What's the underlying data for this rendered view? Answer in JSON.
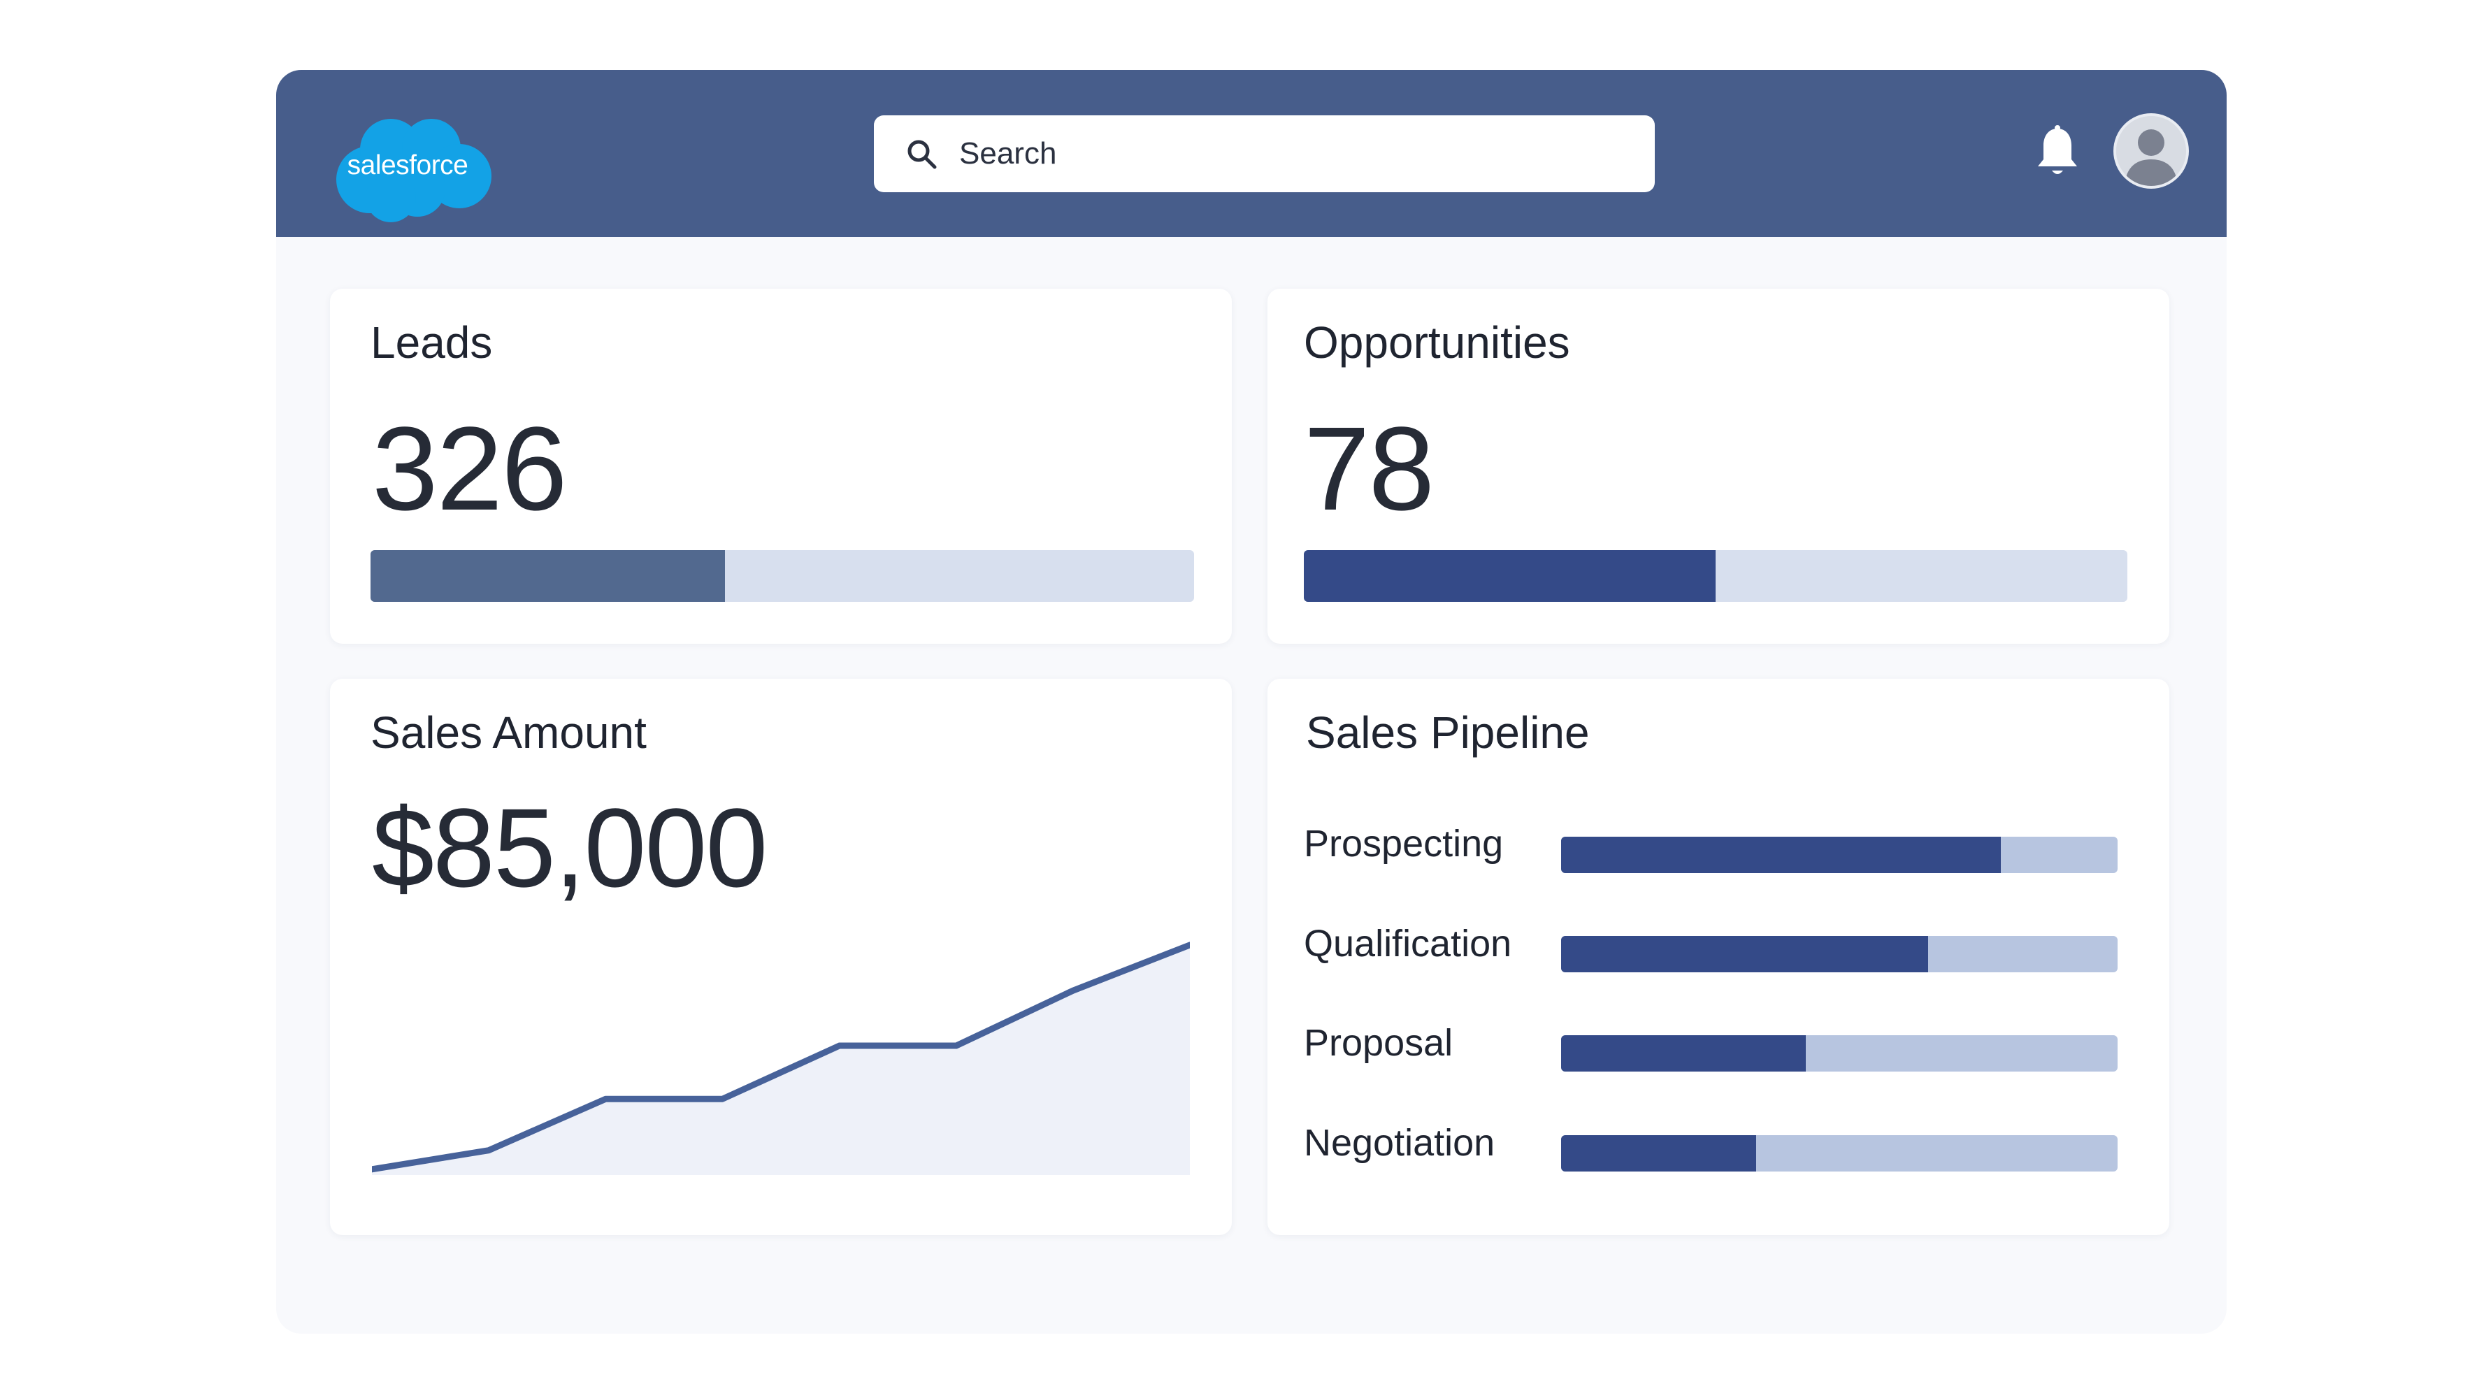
{
  "header": {
    "logo_text": "salesforce",
    "search_placeholder": "Search"
  },
  "colors": {
    "header_bg": "#475d8b",
    "logo_blue": "#13a2e6",
    "leads_bar": "#52698f",
    "opps_bar": "#344a88",
    "track": "#d7dfee",
    "pipeline_fill": "#344a88",
    "pipeline_track": "#b7c5e0",
    "line": "#47629a",
    "area": "#eef1f9"
  },
  "cards": {
    "leads": {
      "title": "Leads",
      "value": "326",
      "progress": 0.43
    },
    "opportunities": {
      "title": "Opportunities",
      "value": "78",
      "progress": 0.5
    },
    "sales_amount": {
      "title": "Sales Amount",
      "value": "$85,000"
    },
    "pipeline": {
      "title": "Sales Pipeline",
      "stages": [
        {
          "label": "Prospecting",
          "progress": 0.79
        },
        {
          "label": "Qualification",
          "progress": 0.66
        },
        {
          "label": "Proposal",
          "progress": 0.44
        },
        {
          "label": "Negotiation",
          "progress": 0.35
        }
      ]
    }
  },
  "chart_data": {
    "type": "area",
    "title": "",
    "xlabel": "",
    "ylabel": "",
    "x": [
      0,
      1,
      2,
      3,
      4,
      5,
      6,
      7
    ],
    "series": [
      {
        "values": [
          3,
          13,
          40,
          40,
          68,
          68,
          97,
          121
        ]
      }
    ],
    "ylim": [
      0,
      125
    ],
    "grid": false
  }
}
